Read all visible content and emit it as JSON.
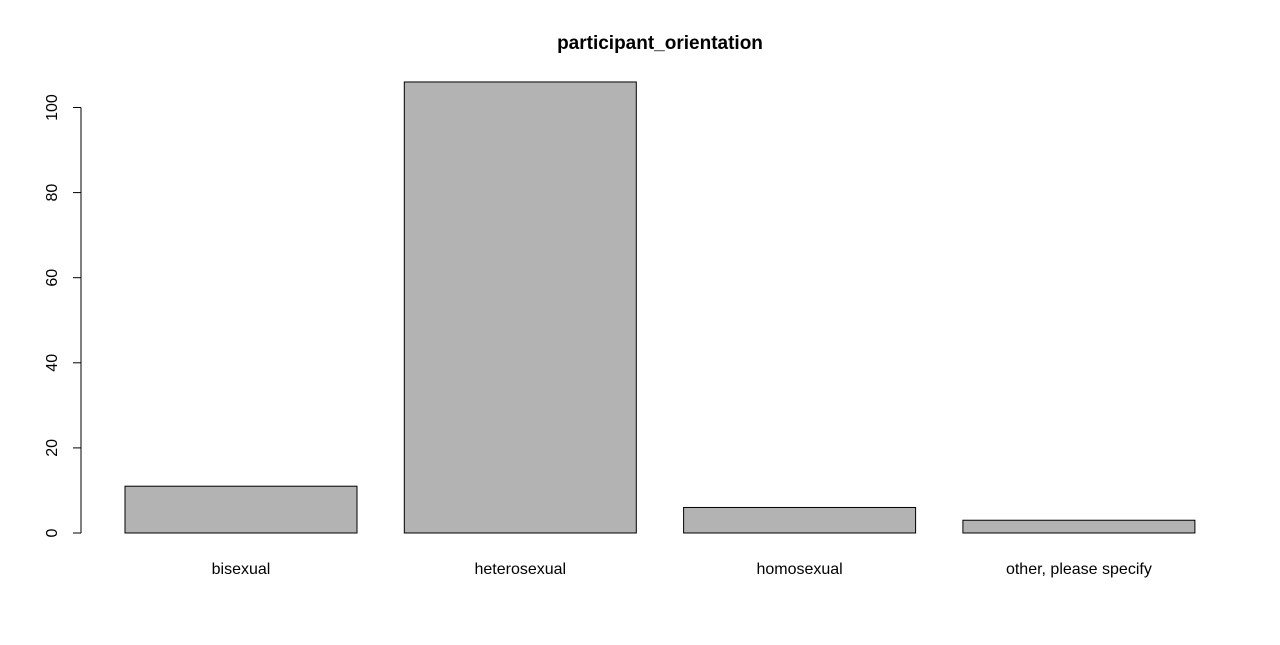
{
  "chart_data": {
    "type": "bar",
    "title": "participant_orientation",
    "xlabel": "",
    "ylabel": "",
    "categories": [
      "bisexual",
      "heterosexual",
      "homosexual",
      "other, please specify"
    ],
    "values": [
      11,
      106,
      6,
      3
    ],
    "ylim": [
      0,
      100
    ],
    "yticks": [
      0,
      20,
      40,
      60,
      80,
      100
    ],
    "grid": false,
    "legend": "none",
    "bar_color": "#b3b3b3",
    "bar_border_color": "#000000"
  }
}
